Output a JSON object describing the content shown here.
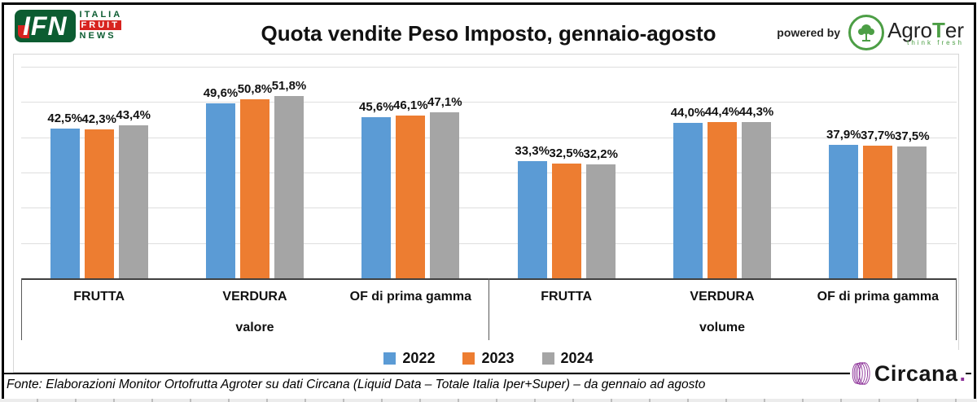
{
  "header": {
    "title": "Quota vendite Peso Imposto, gennaio-agosto",
    "ifn": {
      "abbr": "IFN",
      "line1": "ITALIA",
      "line2": "FRUIT",
      "line3": "NEWS"
    },
    "powered_by": "powered by",
    "agroter": {
      "prefix": "Agro",
      "t": "T",
      "suffix": "er",
      "tagline": "think fresh"
    }
  },
  "chart_data": {
    "type": "bar",
    "title": "Quota vendite Peso Imposto, gennaio-agosto",
    "xlabel": "",
    "ylabel": "",
    "ylim": [
      0,
      60
    ],
    "grid": true,
    "grid_step_pct": 10,
    "legend_position": "bottom",
    "series_names": [
      "2022",
      "2023",
      "2024"
    ],
    "series_colors": [
      "#5B9BD5",
      "#ED7D31",
      "#A5A5A5"
    ],
    "sections": [
      {
        "label": "valore",
        "groups": [
          {
            "category": "FRUTTA",
            "values": [
              42.5,
              42.3,
              43.4
            ],
            "labels": [
              "42,5%",
              "42,3%",
              "43,4%"
            ]
          },
          {
            "category": "VERDURA",
            "values": [
              49.6,
              50.8,
              51.8
            ],
            "labels": [
              "49,6%",
              "50,8%",
              "51,8%"
            ]
          },
          {
            "category": "OF di prima gamma",
            "values": [
              45.6,
              46.1,
              47.1
            ],
            "labels": [
              "45,6%",
              "46,1%",
              "47,1%"
            ]
          }
        ]
      },
      {
        "label": "volume",
        "groups": [
          {
            "category": "FRUTTA",
            "values": [
              33.3,
              32.5,
              32.2
            ],
            "labels": [
              "33,3%",
              "32,5%",
              "32,2%"
            ]
          },
          {
            "category": "VERDURA",
            "values": [
              44.0,
              44.4,
              44.3
            ],
            "labels": [
              "44,0%",
              "44,4%",
              "44,3%"
            ]
          },
          {
            "category": "OF di prima gamma",
            "values": [
              37.9,
              37.7,
              37.5
            ],
            "labels": [
              "37,9%",
              "37,7%",
              "37,5%"
            ]
          }
        ]
      }
    ],
    "legend": [
      {
        "label": "2022",
        "color": "#5B9BD5"
      },
      {
        "label": "2023",
        "color": "#ED7D31"
      },
      {
        "label": "2024",
        "color": "#A5A5A5"
      }
    ]
  },
  "footer": {
    "source": "Fonte: Elaborazioni Monitor Ortofrutta Agroter su dati Circana (Liquid Data – Totale Italia Iper+Super) –  da gennaio ad agosto",
    "circana": "Circana",
    "circana_dot": "."
  }
}
